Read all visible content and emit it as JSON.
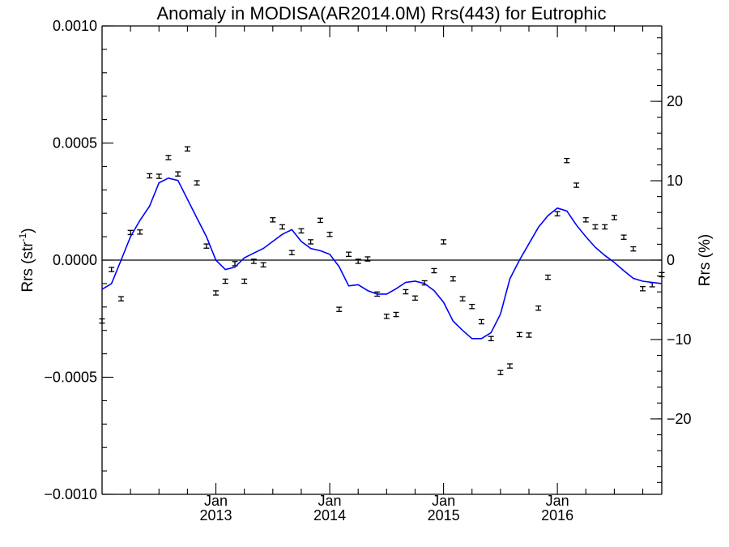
{
  "chart_data": {
    "type": "line",
    "title": "Anomaly in MODISA(AR2014.0M) Rrs(443) for Eutrophic",
    "ylabel_left": "Rrs (str",
    "ylabel_left_sup": "-1",
    "ylabel_left_end": ")",
    "ylabel_right": "Rrs (%)",
    "xlabel": "",
    "ylim": [
      -0.001,
      0.001
    ],
    "ylim_right": [
      -29.5,
      29.5
    ],
    "xlim": [
      2012.0,
      2016.917
    ],
    "left_ticks": [
      {
        "value": 0.001,
        "label": "0.0010"
      },
      {
        "value": 0.0005,
        "label": "0.0005"
      },
      {
        "value": 0.0,
        "label": "0.0000"
      },
      {
        "value": -0.0005,
        "label": "−0.0005"
      },
      {
        "value": -0.001,
        "label": "−0.0010"
      }
    ],
    "right_ticks": [
      {
        "value": 20,
        "label": "20"
      },
      {
        "value": 10,
        "label": "10"
      },
      {
        "value": 0,
        "label": "0"
      },
      {
        "value": -10,
        "label": "−10"
      },
      {
        "value": -20,
        "label": "−20"
      }
    ],
    "x_ticks": [
      {
        "value": 2013.0,
        "month": "Jan",
        "year": "2013"
      },
      {
        "value": 2014.0,
        "month": "Jan",
        "year": "2014"
      },
      {
        "value": 2015.0,
        "month": "Jan",
        "year": "2015"
      },
      {
        "value": 2016.0,
        "month": "Jan",
        "year": "2016"
      }
    ],
    "zero_line": 0.0,
    "series": [
      {
        "kind": "monthly_anomaly_errorbars",
        "color": "#000000",
        "x": [
          2012.0,
          2012.083,
          2012.167,
          2012.25,
          2012.333,
          2012.417,
          2012.5,
          2012.583,
          2012.667,
          2012.75,
          2012.833,
          2012.917,
          2013.0,
          2013.083,
          2013.167,
          2013.25,
          2013.333,
          2013.417,
          2013.5,
          2013.583,
          2013.667,
          2013.75,
          2013.833,
          2013.917,
          2014.0,
          2014.083,
          2014.167,
          2014.25,
          2014.333,
          2014.417,
          2014.5,
          2014.583,
          2014.667,
          2014.75,
          2014.833,
          2014.917,
          2015.0,
          2015.083,
          2015.167,
          2015.25,
          2015.333,
          2015.417,
          2015.5,
          2015.583,
          2015.667,
          2015.75,
          2015.833,
          2015.917,
          2016.0,
          2016.083,
          2016.167,
          2016.25,
          2016.333,
          2016.417,
          2016.5,
          2016.583,
          2016.667,
          2016.75,
          2016.833,
          2016.917
        ],
        "y": [
          -0.00026,
          -4e-05,
          -0.000165,
          0.000118,
          0.00012,
          0.00036,
          0.000358,
          0.000438,
          0.000368,
          0.000475,
          0.00033,
          6e-05,
          -0.00014,
          -9e-05,
          -1.5e-05,
          -9e-05,
          -5e-06,
          -2e-05,
          0.000172,
          0.000142,
          3.2e-05,
          0.000125,
          7.8e-05,
          0.00017,
          0.00011,
          -0.00021,
          2.5e-05,
          -5e-06,
          5e-06,
          -0.000145,
          -0.00024,
          -0.000232,
          -0.000135,
          -0.000162,
          -9.7e-05,
          -4.5e-05,
          7.8e-05,
          -8e-05,
          -0.000165,
          -0.000198,
          -0.000263,
          -0.000335,
          -0.00048,
          -0.000452,
          -0.000318,
          -0.00032,
          -0.000205,
          -7.3e-05,
          0.000198,
          0.000425,
          0.00032,
          0.000172,
          0.000142,
          0.000142,
          0.000182,
          9.8e-05,
          4.8e-05,
          -0.000122,
          -0.000105,
          -6.2e-05
        ],
        "err": [
          9e-06,
          9e-06,
          9e-06,
          9e-06,
          9e-06,
          9e-06,
          9e-06,
          9e-06,
          9e-06,
          9e-06,
          9e-06,
          9e-06,
          9e-06,
          9e-06,
          9e-06,
          9e-06,
          9e-06,
          9e-06,
          9e-06,
          9e-06,
          9e-06,
          9e-06,
          9e-06,
          9e-06,
          9e-06,
          9e-06,
          9e-06,
          9e-06,
          9e-06,
          9e-06,
          9e-06,
          9e-06,
          9e-06,
          9e-06,
          9e-06,
          9e-06,
          9e-06,
          9e-06,
          9e-06,
          9e-06,
          9e-06,
          9e-06,
          9e-06,
          9e-06,
          9e-06,
          9e-06,
          9e-06,
          9e-06,
          9e-06,
          9e-06,
          9e-06,
          9e-06,
          9e-06,
          9e-06,
          9e-06,
          9e-06,
          9e-06,
          9e-06,
          9e-06,
          9e-06
        ]
      },
      {
        "kind": "smoothed_line",
        "color": "#0000ff",
        "x": [
          2012.0,
          2012.083,
          2012.167,
          2012.25,
          2012.333,
          2012.417,
          2012.5,
          2012.583,
          2012.667,
          2012.75,
          2012.833,
          2012.917,
          2013.0,
          2013.083,
          2013.167,
          2013.25,
          2013.333,
          2013.417,
          2013.5,
          2013.583,
          2013.667,
          2013.75,
          2013.833,
          2013.917,
          2014.0,
          2014.083,
          2014.167,
          2014.25,
          2014.333,
          2014.417,
          2014.5,
          2014.583,
          2014.667,
          2014.75,
          2014.833,
          2014.917,
          2015.0,
          2015.083,
          2015.167,
          2015.25,
          2015.333,
          2015.417,
          2015.5,
          2015.583,
          2015.667,
          2015.75,
          2015.833,
          2015.917,
          2016.0,
          2016.083,
          2016.167,
          2016.25,
          2016.333,
          2016.417,
          2016.5,
          2016.583,
          2016.667,
          2016.75,
          2016.833,
          2016.917
        ],
        "y": [
          -0.000125,
          -0.0001,
          0.0,
          0.0001,
          0.00017,
          0.00023,
          0.00033,
          0.00035,
          0.00034,
          0.00026,
          0.00018,
          0.0001,
          0.0,
          -4e-05,
          -3e-05,
          1e-05,
          3e-05,
          5e-05,
          8e-05,
          0.00011,
          0.00013,
          8e-05,
          5e-05,
          4e-05,
          2.5e-05,
          -2.8e-05,
          -0.00011,
          -0.000105,
          -0.00013,
          -0.000145,
          -0.000145,
          -0.000122,
          -9.5e-05,
          -9e-05,
          -0.0001,
          -0.00013,
          -0.00018,
          -0.00026,
          -0.0003,
          -0.000335,
          -0.000335,
          -0.00031,
          -0.00023,
          -8e-05,
          0.0,
          7e-05,
          0.00014,
          0.00019,
          0.000222,
          0.00021,
          0.00015,
          0.0001,
          5.5e-05,
          2e-05,
          -1e-05,
          -4.5e-05,
          -7.8e-05,
          -9e-05,
          -9.5e-05,
          -0.0001
        ]
      }
    ]
  }
}
